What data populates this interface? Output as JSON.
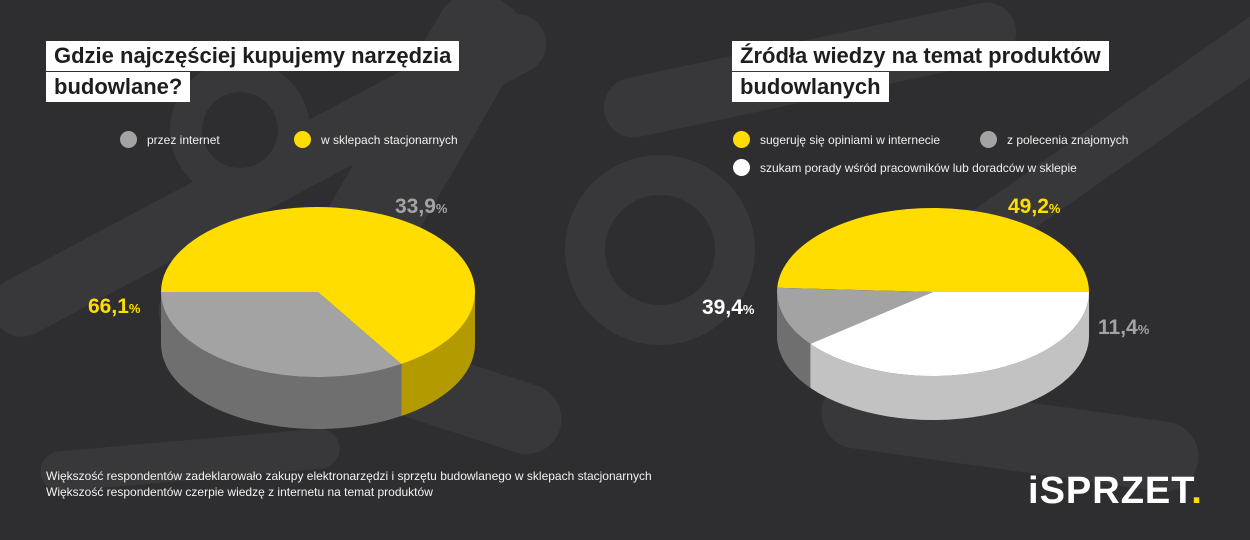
{
  "colors": {
    "yellow": "#ffdd00",
    "yellow_side": "#b39a00",
    "gray": "#a3a3a3",
    "gray_side": "#6f6f6f",
    "white": "#ffffff",
    "white_side": "#c2c2c2",
    "background": "#2e2e30"
  },
  "left": {
    "title_lines": [
      "Gdzie najczęściej kupujemy narzędzia",
      "budowlane?"
    ],
    "legend": [
      {
        "label": "przez internet",
        "color": "gray"
      },
      {
        "label": "w sklepach stacjonarnych",
        "color": "yellow"
      }
    ]
  },
  "right": {
    "title_lines": [
      "Źródła wiedzy na temat produktów",
      "budowlanych"
    ],
    "legend": [
      {
        "label": "sugeruję się opiniami w internecie",
        "color": "yellow"
      },
      {
        "label": "z polecenia znajomych",
        "color": "gray"
      },
      {
        "label": "szukam porady wśród pracowników lub doradców w sklepie",
        "color": "white"
      }
    ]
  },
  "chart_data": [
    {
      "type": "pie",
      "title": "Gdzie najczęściej kupujemy narzędzia budowlane?",
      "slices": [
        {
          "label": "przez internet",
          "value": 33.9,
          "display": "33,9",
          "color": "gray"
        },
        {
          "label": "w sklepach stacjonarnych",
          "value": 66.1,
          "display": "66,1",
          "color": "yellow"
        }
      ],
      "unit": "%"
    },
    {
      "type": "pie",
      "title": "Źródła wiedzy na temat produktów budowlanych",
      "slices": [
        {
          "label": "sugeruję się opiniami w internecie",
          "value": 49.2,
          "display": "49,2",
          "color": "yellow"
        },
        {
          "label": "z polecenia znajomych",
          "value": 11.4,
          "display": "11,4",
          "color": "gray"
        },
        {
          "label": "szukam porady wśród pracowników lub doradców w sklepie",
          "value": 39.4,
          "display": "39,4",
          "color": "white"
        }
      ],
      "unit": "%"
    }
  ],
  "footer": {
    "notes": [
      "Większość respondentów zadeklarowało zakupy elektronarzędzi i sprzętu budowlanego w sklepach stacjonarnych",
      "Większość respondentów czerpie wiedzę z internetu na temat produktów"
    ],
    "logo_i": "i",
    "logo_text": "SPRZET",
    "logo_dot": "."
  }
}
